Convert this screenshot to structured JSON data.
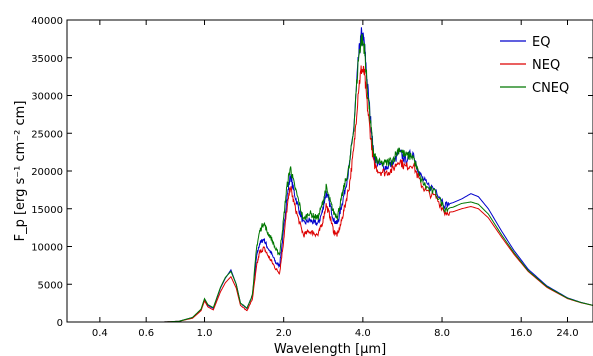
{
  "chart_data": {
    "type": "line",
    "xlabel": "Wavelength [μm]",
    "ylabel": "F_p [erg s⁻¹ cm⁻² cm]",
    "xscale": "log",
    "xlim": [
      0.3,
      30
    ],
    "ylim": [
      0,
      40000
    ],
    "x_ticks": [
      0.4,
      0.6,
      1.0,
      2.0,
      4.0,
      8.0,
      16.0,
      24.0
    ],
    "x_tick_labels": [
      "0.4",
      "0.6",
      "1.0",
      "2.0",
      "4.0",
      "8.0",
      "16.0",
      "24.0"
    ],
    "y_ticks": [
      0,
      5000,
      10000,
      15000,
      20000,
      25000,
      30000,
      35000,
      40000
    ],
    "y_tick_labels": [
      "0",
      "5000",
      "10000",
      "15000",
      "20000",
      "25000",
      "30000",
      "35000",
      "40000"
    ],
    "legend_position": "top-right",
    "grid": false,
    "series": [
      {
        "name": "EQ",
        "color": "#0000cc",
        "points": [
          [
            0.3,
            0
          ],
          [
            0.7,
            0
          ],
          [
            0.8,
            100
          ],
          [
            0.9,
            600
          ],
          [
            0.97,
            1600
          ],
          [
            1.0,
            3000
          ],
          [
            1.03,
            2200
          ],
          [
            1.08,
            1800
          ],
          [
            1.15,
            4500
          ],
          [
            1.2,
            5800
          ],
          [
            1.26,
            6900
          ],
          [
            1.32,
            5000
          ],
          [
            1.37,
            2500
          ],
          [
            1.45,
            1800
          ],
          [
            1.52,
            3500
          ],
          [
            1.58,
            8800
          ],
          [
            1.62,
            10400
          ],
          [
            1.68,
            11000
          ],
          [
            1.73,
            10000
          ],
          [
            1.8,
            9000
          ],
          [
            1.87,
            7800
          ],
          [
            1.93,
            7500
          ],
          [
            1.99,
            11500
          ],
          [
            2.05,
            16000
          ],
          [
            2.12,
            19500
          ],
          [
            2.18,
            17500
          ],
          [
            2.28,
            15000
          ],
          [
            2.38,
            13000
          ],
          [
            2.5,
            13500
          ],
          [
            2.6,
            13200
          ],
          [
            2.7,
            13000
          ],
          [
            2.8,
            14500
          ],
          [
            2.9,
            17200
          ],
          [
            3.0,
            15500
          ],
          [
            3.1,
            13500
          ],
          [
            3.2,
            13000
          ],
          [
            3.3,
            15000
          ],
          [
            3.4,
            17000
          ],
          [
            3.55,
            20500
          ],
          [
            3.7,
            26000
          ],
          [
            3.85,
            35000
          ],
          [
            3.95,
            38000
          ],
          [
            4.05,
            37000
          ],
          [
            4.15,
            32000
          ],
          [
            4.3,
            26000
          ],
          [
            4.4,
            22000
          ],
          [
            4.6,
            20800
          ],
          [
            4.9,
            20500
          ],
          [
            5.2,
            21000
          ],
          [
            5.5,
            22500
          ],
          [
            5.8,
            21500
          ],
          [
            6.2,
            22500
          ],
          [
            6.6,
            19500
          ],
          [
            7.0,
            18200
          ],
          [
            7.6,
            17500
          ],
          [
            8.2,
            15500
          ],
          [
            8.8,
            15800
          ],
          [
            9.5,
            16300
          ],
          [
            10.3,
            17000
          ],
          [
            11.0,
            16600
          ],
          [
            12.0,
            15000
          ],
          [
            13.5,
            12000
          ],
          [
            15.0,
            9500
          ],
          [
            17.0,
            7000
          ],
          [
            20.0,
            4800
          ],
          [
            24.0,
            3200
          ],
          [
            27.0,
            2600
          ],
          [
            30.0,
            2200
          ]
        ]
      },
      {
        "name": "NEQ",
        "color": "#dd0000",
        "points": [
          [
            0.3,
            0
          ],
          [
            0.7,
            0
          ],
          [
            0.8,
            100
          ],
          [
            0.9,
            500
          ],
          [
            0.97,
            1500
          ],
          [
            1.0,
            2800
          ],
          [
            1.03,
            2000
          ],
          [
            1.08,
            1600
          ],
          [
            1.15,
            4000
          ],
          [
            1.2,
            5200
          ],
          [
            1.26,
            6000
          ],
          [
            1.32,
            4500
          ],
          [
            1.37,
            2200
          ],
          [
            1.45,
            1500
          ],
          [
            1.52,
            3000
          ],
          [
            1.58,
            7500
          ],
          [
            1.62,
            9200
          ],
          [
            1.68,
            9800
          ],
          [
            1.73,
            9000
          ],
          [
            1.8,
            8000
          ],
          [
            1.87,
            7000
          ],
          [
            1.93,
            6500
          ],
          [
            1.99,
            10200
          ],
          [
            2.05,
            14500
          ],
          [
            2.12,
            18000
          ],
          [
            2.18,
            16000
          ],
          [
            2.28,
            13500
          ],
          [
            2.38,
            11500
          ],
          [
            2.5,
            12000
          ],
          [
            2.6,
            11800
          ],
          [
            2.7,
            11500
          ],
          [
            2.8,
            13000
          ],
          [
            2.9,
            15500
          ],
          [
            3.0,
            14000
          ],
          [
            3.1,
            12000
          ],
          [
            3.2,
            11500
          ],
          [
            3.3,
            13000
          ],
          [
            3.4,
            15000
          ],
          [
            3.55,
            18000
          ],
          [
            3.7,
            23000
          ],
          [
            3.85,
            31000
          ],
          [
            3.95,
            33500
          ],
          [
            4.05,
            33000
          ],
          [
            4.15,
            29000
          ],
          [
            4.3,
            24000
          ],
          [
            4.4,
            21000
          ],
          [
            4.6,
            20000
          ],
          [
            4.9,
            19800
          ],
          [
            5.2,
            20200
          ],
          [
            5.5,
            21500
          ],
          [
            5.8,
            20500
          ],
          [
            6.2,
            21000
          ],
          [
            6.6,
            18500
          ],
          [
            7.0,
            17200
          ],
          [
            7.6,
            16500
          ],
          [
            8.2,
            14500
          ],
          [
            8.8,
            14600
          ],
          [
            9.5,
            15000
          ],
          [
            10.3,
            15300
          ],
          [
            11.0,
            15000
          ],
          [
            12.0,
            13800
          ],
          [
            13.5,
            11200
          ],
          [
            15.0,
            9000
          ],
          [
            17.0,
            6700
          ],
          [
            20.0,
            4600
          ],
          [
            24.0,
            3100
          ],
          [
            27.0,
            2550
          ],
          [
            30.0,
            2200
          ]
        ]
      },
      {
        "name": "CNEQ",
        "color": "#007700",
        "points": [
          [
            0.3,
            0
          ],
          [
            0.7,
            0
          ],
          [
            0.8,
            100
          ],
          [
            0.9,
            600
          ],
          [
            0.97,
            1700
          ],
          [
            1.0,
            3100
          ],
          [
            1.03,
            2300
          ],
          [
            1.08,
            1900
          ],
          [
            1.15,
            4600
          ],
          [
            1.2,
            5900
          ],
          [
            1.26,
            6700
          ],
          [
            1.32,
            5000
          ],
          [
            1.37,
            2500
          ],
          [
            1.45,
            1800
          ],
          [
            1.52,
            3600
          ],
          [
            1.58,
            10000
          ],
          [
            1.62,
            12000
          ],
          [
            1.68,
            13200
          ],
          [
            1.73,
            12000
          ],
          [
            1.8,
            11000
          ],
          [
            1.87,
            9500
          ],
          [
            1.93,
            9000
          ],
          [
            1.99,
            13000
          ],
          [
            2.05,
            17500
          ],
          [
            2.12,
            20500
          ],
          [
            2.18,
            18500
          ],
          [
            2.28,
            16000
          ],
          [
            2.38,
            13500
          ],
          [
            2.5,
            14500
          ],
          [
            2.6,
            14000
          ],
          [
            2.7,
            13800
          ],
          [
            2.8,
            15500
          ],
          [
            2.9,
            17800
          ],
          [
            3.0,
            16000
          ],
          [
            3.1,
            14500
          ],
          [
            3.2,
            14000
          ],
          [
            3.3,
            16000
          ],
          [
            3.4,
            18000
          ],
          [
            3.55,
            20500
          ],
          [
            3.7,
            26000
          ],
          [
            3.85,
            35000
          ],
          [
            3.95,
            37500
          ],
          [
            4.05,
            36500
          ],
          [
            4.15,
            31500
          ],
          [
            4.3,
            25500
          ],
          [
            4.4,
            22000
          ],
          [
            4.6,
            21000
          ],
          [
            4.9,
            21000
          ],
          [
            5.2,
            21500
          ],
          [
            5.5,
            23000
          ],
          [
            5.8,
            22000
          ],
          [
            6.2,
            22000
          ],
          [
            6.6,
            19000
          ],
          [
            7.0,
            17800
          ],
          [
            7.6,
            17000
          ],
          [
            8.2,
            15000
          ],
          [
            8.8,
            15200
          ],
          [
            9.5,
            15700
          ],
          [
            10.3,
            15900
          ],
          [
            11.0,
            15600
          ],
          [
            12.0,
            14300
          ],
          [
            13.5,
            11500
          ],
          [
            15.0,
            9200
          ],
          [
            17.0,
            6800
          ],
          [
            20.0,
            4700
          ],
          [
            24.0,
            3150
          ],
          [
            27.0,
            2580
          ],
          [
            30.0,
            2200
          ]
        ]
      }
    ]
  }
}
